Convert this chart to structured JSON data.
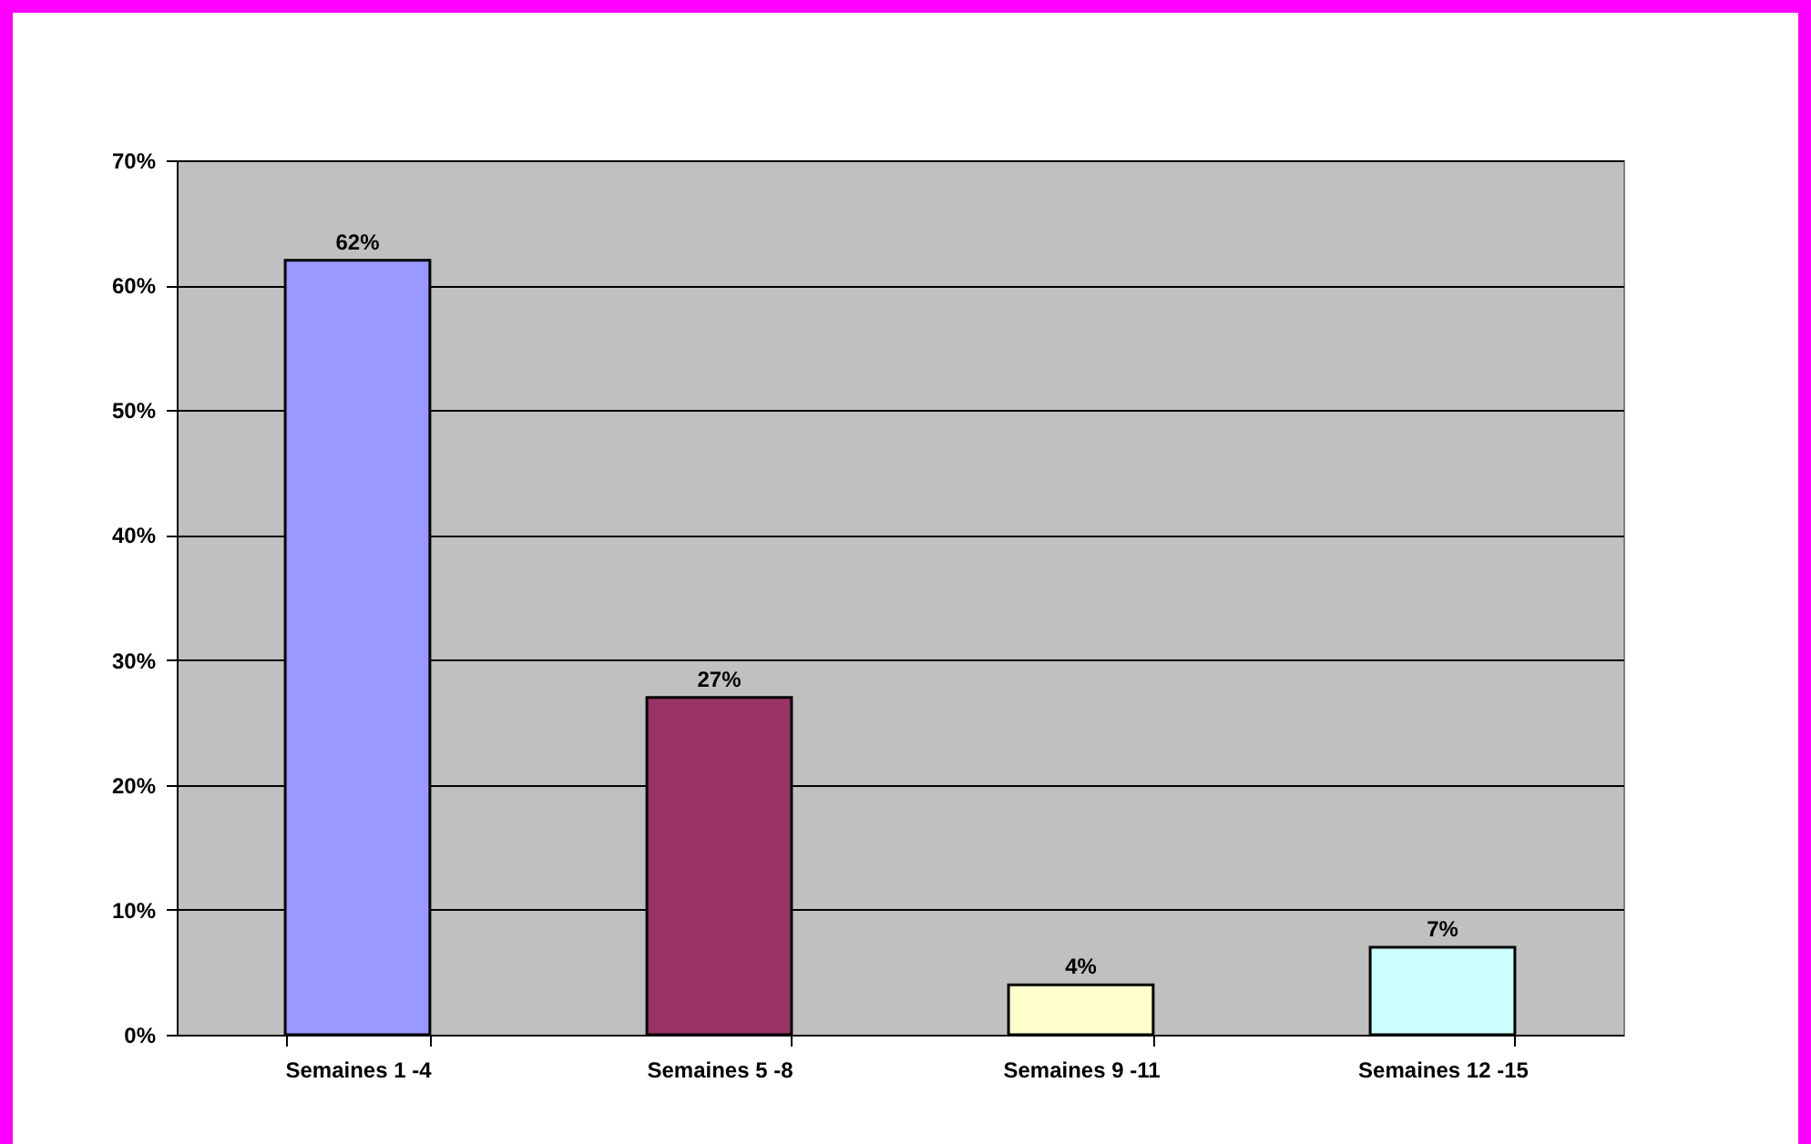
{
  "chart_data": {
    "type": "bar",
    "categories": [
      "Semaines 1 -4",
      "Semaines 5 -8",
      "Semaines 9 -11",
      "Semaines 12 -15"
    ],
    "values": [
      62,
      27,
      4,
      7
    ],
    "colors": [
      "#9999ff",
      "#993366",
      "#ffffcc",
      "#ccffff"
    ],
    "value_labels": [
      "62%",
      "27%",
      "4%",
      "7%"
    ],
    "ylim": [
      0,
      70
    ],
    "yticks": [
      {
        "value": 0,
        "label": "0%"
      },
      {
        "value": 10,
        "label": "10%"
      },
      {
        "value": 20,
        "label": "20%"
      },
      {
        "value": 30,
        "label": "30%"
      },
      {
        "value": 40,
        "label": "40%"
      },
      {
        "value": 50,
        "label": "50%"
      },
      {
        "value": 60,
        "label": "60%"
      },
      {
        "value": 70,
        "label": "70%"
      }
    ],
    "grid": "y"
  }
}
